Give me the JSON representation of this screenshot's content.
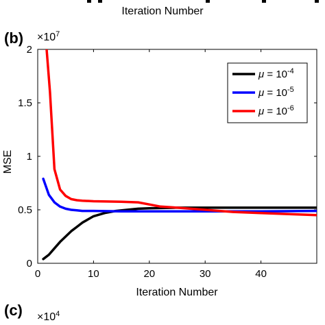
{
  "top_strip": {
    "xlabel": "Iteration Number"
  },
  "panel_b": {
    "label": "(b)",
    "y_multiplier_base": "×10",
    "y_multiplier_exp": "7"
  },
  "panel_c": {
    "label": "(c)",
    "y_multiplier_base": "×10",
    "y_multiplier_exp": "4"
  },
  "chart_data": {
    "type": "line",
    "title": "",
    "xlabel": "Iteration Number",
    "ylabel": "MSE",
    "xlim": [
      0,
      50
    ],
    "ylim": [
      0,
      2
    ],
    "y_scale_factor": "1e7",
    "xticks": [
      "0",
      "10",
      "20",
      "30",
      "40"
    ],
    "yticks": [
      "0",
      "0.5",
      "1",
      "1.5",
      "2"
    ],
    "grid": false,
    "legend_placement": "top-right",
    "series": [
      {
        "name": "μ = 10^-4",
        "color": "#000000",
        "x": [
          1,
          2,
          3,
          4,
          5,
          6,
          7,
          8,
          9,
          10,
          12,
          14,
          16,
          18,
          20,
          25,
          30,
          40,
          50
        ],
        "values": [
          0.04,
          0.08,
          0.14,
          0.2,
          0.25,
          0.3,
          0.34,
          0.38,
          0.41,
          0.44,
          0.47,
          0.49,
          0.5,
          0.51,
          0.515,
          0.52,
          0.52,
          0.52,
          0.52
        ]
      },
      {
        "name": "μ = 10^-5",
        "color": "#0000ff",
        "x": [
          1,
          2,
          3,
          4,
          5,
          6,
          7,
          8,
          10,
          15,
          20,
          30,
          40,
          50
        ],
        "values": [
          0.79,
          0.64,
          0.57,
          0.53,
          0.51,
          0.5,
          0.495,
          0.49,
          0.49,
          0.485,
          0.485,
          0.485,
          0.485,
          0.49
        ]
      },
      {
        "name": "μ = 10^-6",
        "color": "#ff0000",
        "x": [
          1.6,
          2.2,
          3,
          4,
          5,
          6,
          7,
          8,
          10,
          15,
          18,
          20,
          22,
          25,
          30,
          35,
          40,
          50
        ],
        "values": [
          2.0,
          1.6,
          0.88,
          0.69,
          0.63,
          0.6,
          0.59,
          0.585,
          0.58,
          0.575,
          0.57,
          0.55,
          0.53,
          0.52,
          0.5,
          0.48,
          0.47,
          0.45
        ]
      }
    ]
  }
}
